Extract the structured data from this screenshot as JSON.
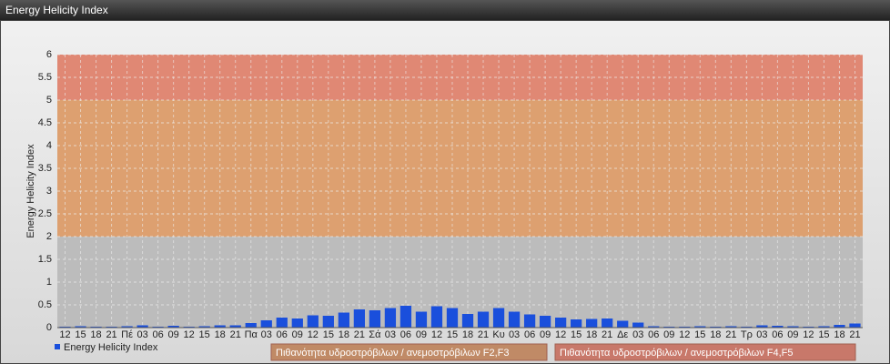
{
  "chart_data": {
    "type": "bar",
    "title": "Energy Helicity Index",
    "y_label": "Energy Helicity Index",
    "categories": [
      "12",
      "15",
      "18",
      "21",
      "Πέ",
      "03",
      "06",
      "09",
      "12",
      "15",
      "18",
      "21",
      "Πα",
      "03",
      "06",
      "09",
      "12",
      "15",
      "18",
      "21",
      "Σά",
      "03",
      "06",
      "09",
      "12",
      "15",
      "18",
      "21",
      "Κυ",
      "03",
      "06",
      "09",
      "12",
      "15",
      "18",
      "21",
      "Δε",
      "03",
      "06",
      "09",
      "12",
      "15",
      "18",
      "21",
      "Τρ",
      "03",
      "06",
      "09",
      "12",
      "15",
      "18",
      "21"
    ],
    "series": [
      {
        "name": "Energy Helicity Index",
        "color": "#1a4fdc",
        "values": [
          0.02,
          0.03,
          0.02,
          0.02,
          0.03,
          0.05,
          0.02,
          0.04,
          0.02,
          0.03,
          0.05,
          0.05,
          0.1,
          0.16,
          0.22,
          0.2,
          0.27,
          0.26,
          0.33,
          0.4,
          0.38,
          0.43,
          0.48,
          0.35,
          0.47,
          0.43,
          0.3,
          0.35,
          0.43,
          0.35,
          0.29,
          0.26,
          0.22,
          0.18,
          0.19,
          0.2,
          0.15,
          0.11,
          0.03,
          0.02,
          0.02,
          0.03,
          0.02,
          0.03,
          0.02,
          0.05,
          0.04,
          0.03,
          0.02,
          0.03,
          0.06,
          0.09
        ]
      }
    ],
    "bands": [
      {
        "from": 2,
        "to": 5,
        "color": "#dda070",
        "legend_color": "#c08a66",
        "label": "Πιθανότητα υδροστρόβιλων / ανεμοστρόβιλων F2,F3"
      },
      {
        "from": 5,
        "to": 6,
        "color": "#e08874",
        "legend_color": "#c8786a",
        "label": "Πιθανότητα υδροστρόβιλων / ανεμοστρόβιλων F4,F5"
      }
    ],
    "ylim": [
      0,
      6
    ],
    "yticks": [
      0,
      0.5,
      1,
      1.5,
      2,
      2.5,
      3,
      3.5,
      4,
      4.5,
      5,
      5.5,
      6
    ],
    "grid": true
  }
}
